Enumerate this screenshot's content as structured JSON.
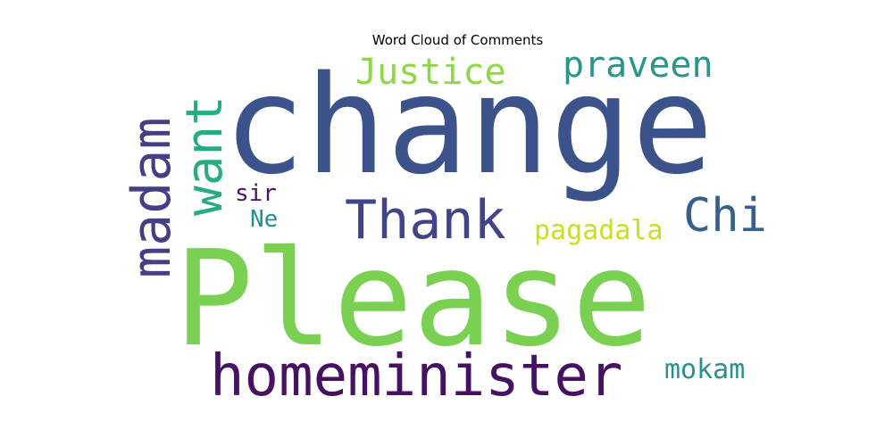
{
  "chart_data": {
    "type": "wordcloud",
    "title": "Word Cloud of Comments",
    "words": [
      {
        "text": "Please",
        "color": "#7ad151"
      },
      {
        "text": "change",
        "color": "#3b528b"
      },
      {
        "text": "homeminister",
        "color": "#471163"
      },
      {
        "text": "Thank",
        "color": "#414487"
      },
      {
        "text": "madam",
        "color": "#433e85"
      },
      {
        "text": "want",
        "color": "#25ac82"
      },
      {
        "text": "Justice",
        "color": "#8fd744"
      },
      {
        "text": "praveen",
        "color": "#2a968b"
      },
      {
        "text": "Chi",
        "color": "#355f8d"
      },
      {
        "text": "pagadala",
        "color": "#c8e020"
      },
      {
        "text": "mokam",
        "color": "#29918c"
      },
      {
        "text": "sir",
        "color": "#481467"
      },
      {
        "text": "Ne",
        "color": "#218f8d"
      }
    ]
  }
}
